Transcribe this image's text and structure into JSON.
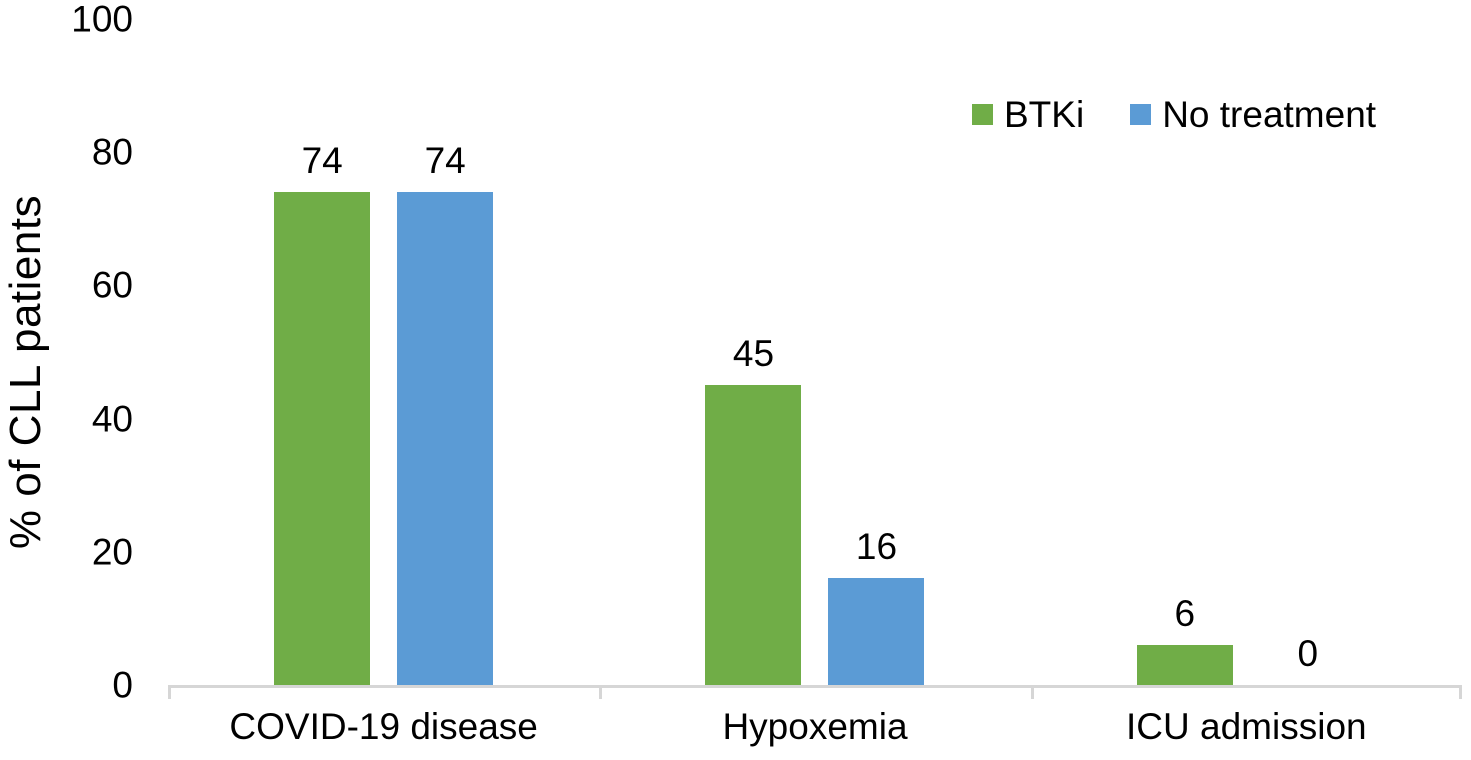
{
  "chart_data": {
    "type": "bar",
    "categories": [
      "COVID-19 disease",
      "Hypoxemia",
      "ICU admission"
    ],
    "series": [
      {
        "name": "BTKi",
        "color": "#70AD47",
        "values": [
          74,
          45,
          6
        ]
      },
      {
        "name": "No treatment",
        "color": "#5B9BD5",
        "values": [
          74,
          16,
          0
        ]
      }
    ],
    "title": "",
    "xlabel": "",
    "ylabel": "% of CLL patients",
    "ylim": [
      0,
      100
    ],
    "yticks": [
      0,
      20,
      40,
      60,
      80,
      100
    ],
    "grid": false,
    "bar_value_labels": true,
    "legend_position": "top-right",
    "colors": {
      "axis_line": "#D6D6D6",
      "text": "#000000",
      "background": "#FFFFFF"
    }
  }
}
